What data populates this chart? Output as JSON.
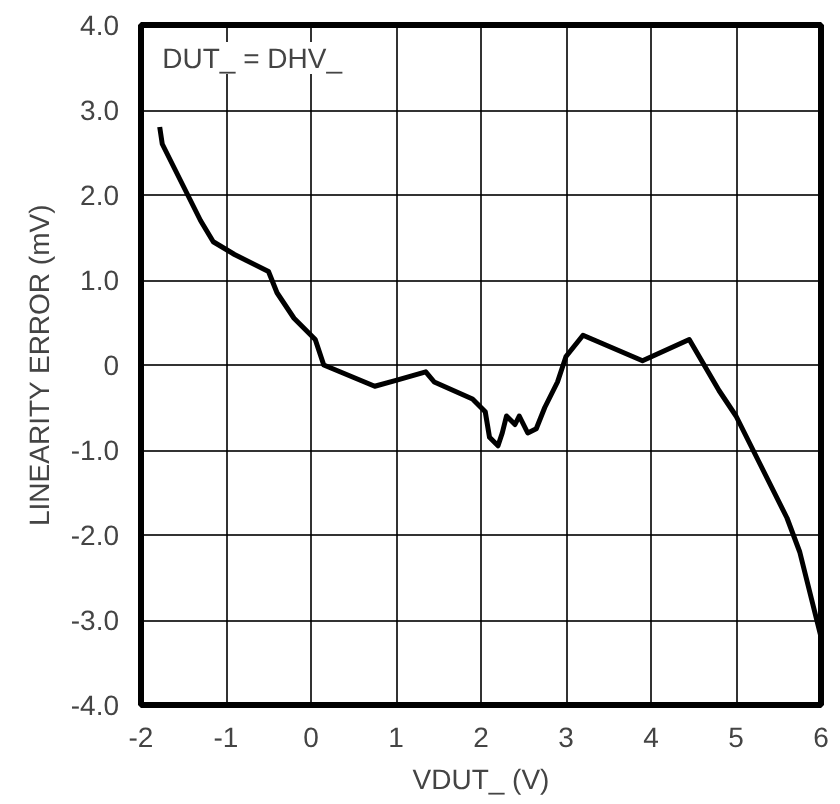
{
  "chart_data": {
    "type": "line",
    "xlabel": "VDUT_ (V)",
    "ylabel": "LINEARITY ERROR (mV)",
    "annotations": [
      "DUT_ = DHV_"
    ],
    "series": [
      {
        "color": "#000000",
        "x": [
          -1.78,
          -1.75,
          -1.6,
          -1.3,
          -1.15,
          -0.9,
          -0.5,
          -0.4,
          -0.2,
          0.05,
          0.15,
          0.75,
          1.0,
          1.35,
          1.45,
          1.9,
          2.0,
          2.05,
          2.1,
          2.2,
          2.25,
          2.3,
          2.4,
          2.45,
          2.55,
          2.65,
          2.75,
          2.9,
          3.0,
          3.2,
          3.9,
          4.45,
          4.8,
          5.0,
          5.2,
          5.6,
          5.75,
          5.95,
          6.0
        ],
        "values": [
          2.8,
          2.6,
          2.3,
          1.7,
          1.45,
          1.3,
          1.1,
          0.85,
          0.55,
          0.3,
          0.0,
          -0.25,
          -0.18,
          -0.08,
          -0.2,
          -0.4,
          -0.5,
          -0.55,
          -0.85,
          -0.95,
          -0.8,
          -0.6,
          -0.7,
          -0.6,
          -0.8,
          -0.75,
          -0.5,
          -0.2,
          0.1,
          0.35,
          0.05,
          0.3,
          -0.3,
          -0.6,
          -1.0,
          -1.8,
          -2.2,
          -3.0,
          -3.2
        ]
      }
    ],
    "xlim": [
      -2,
      6
    ],
    "xticks": [
      -2,
      -1,
      0,
      1,
      2,
      3,
      4,
      5,
      6
    ],
    "ylim": [
      -4,
      4
    ],
    "yticks": [
      {
        "value": -4,
        "label": "-4.0"
      },
      {
        "value": -3,
        "label": "-3.0"
      },
      {
        "value": -2,
        "label": "-2.0"
      },
      {
        "value": -1,
        "label": "-1.0"
      },
      0,
      {
        "value": 1,
        "label": "1.0"
      },
      {
        "value": 2,
        "label": "2.0"
      },
      {
        "value": 3,
        "label": "3.0"
      },
      {
        "value": 4,
        "label": "4.0"
      }
    ],
    "grid": true,
    "marker": "none",
    "line_style": "solid"
  }
}
